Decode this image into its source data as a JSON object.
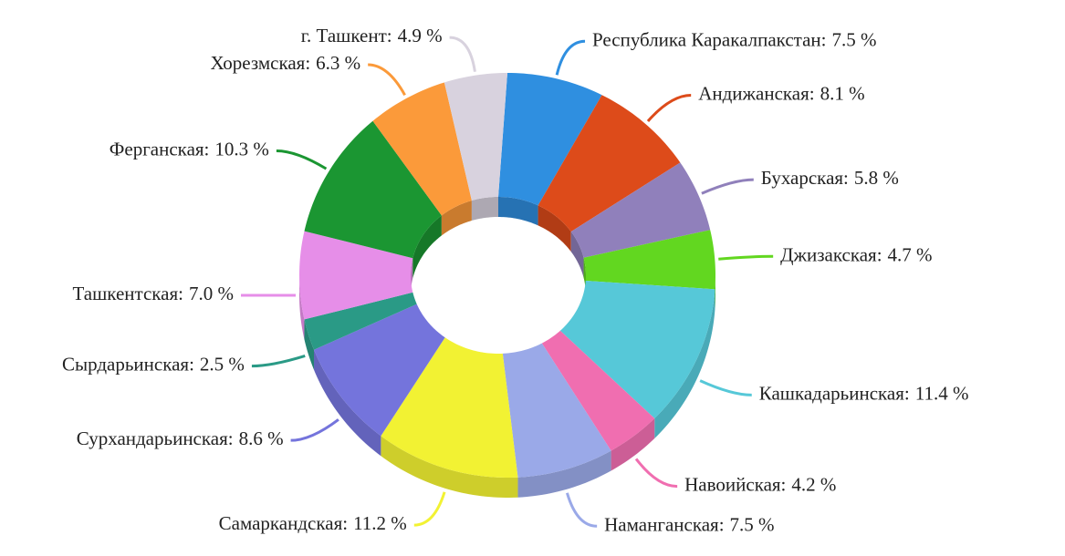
{
  "chart_data": {
    "type": "pie",
    "donut": true,
    "three_d": true,
    "categories": [
      "Республика Каракалпакстан:",
      "Андижанская:",
      "Бухарская:",
      "Джизакская:",
      "Кашкадарьинская:",
      "Навоийская:",
      "Наманганская:",
      "Самаркандская:",
      "Сурхандарьинская:",
      "Сырдарьинская:",
      "Ташкентская:",
      "Ферганская:",
      "Хорезмская:",
      "г. Ташкент:"
    ],
    "values": [
      7.5,
      8.1,
      5.8,
      4.7,
      11.4,
      4.2,
      7.5,
      11.2,
      8.6,
      2.5,
      7.0,
      10.3,
      6.3,
      4.9
    ],
    "value_labels": [
      "7.5 %",
      "8.1 %",
      "5.8 %",
      "4.7 %",
      "11.4 %",
      "4.2 %",
      "7.5 %",
      "11.2 %",
      "8.6 %",
      "2.5 %",
      "7.0 %",
      "10.3 %",
      "6.3 %",
      "4.9 %"
    ],
    "colors": [
      "#2f8fe0",
      "#dd4b1a",
      "#9080bb",
      "#62d720",
      "#56c8d8",
      "#f06eb0",
      "#9aa9e8",
      "#f2f233",
      "#7474dc",
      "#2a9a86",
      "#e68ee8",
      "#1b9632",
      "#fb9a3a",
      "#d8d2de"
    ]
  }
}
